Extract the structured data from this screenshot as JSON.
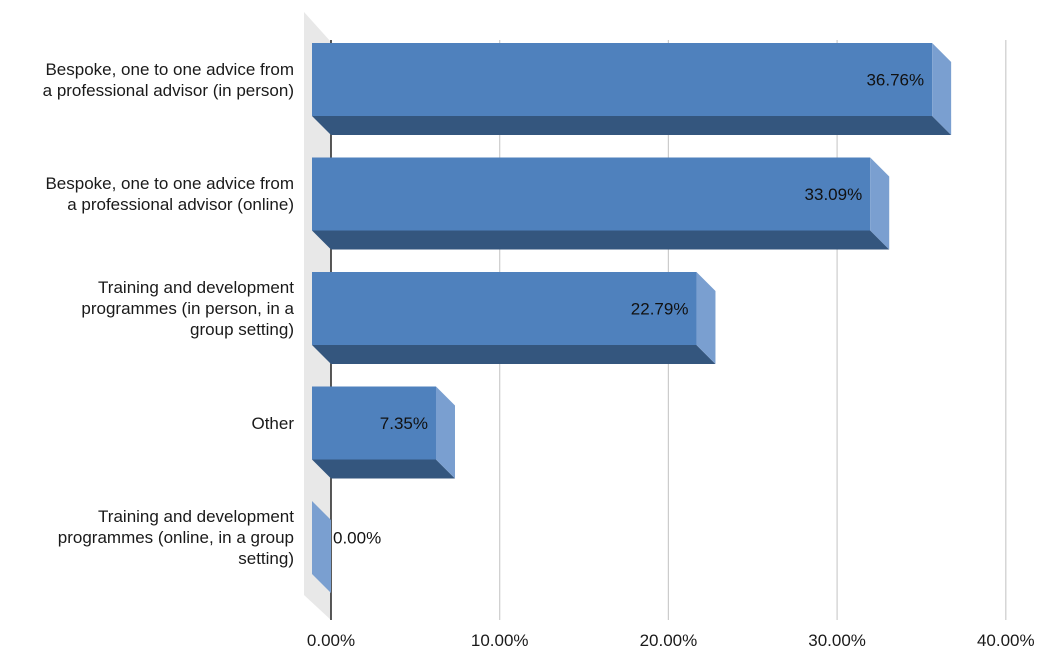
{
  "chart_data": {
    "type": "bar",
    "orientation": "horizontal",
    "style": "3d",
    "categories": [
      "Bespoke, one to one advice from\na professional advisor (in person)",
      "Bespoke, one to one advice from\na professional advisor (online)",
      "Training and development\nprogrammes (in person, in a\ngroup setting)",
      "Other",
      "Training and development\nprogrammes (online, in a group\nsetting)"
    ],
    "values": [
      36.76,
      33.09,
      22.79,
      7.35,
      0.0
    ],
    "data_labels": [
      "36.76%",
      "33.09%",
      "22.79%",
      "7.35%",
      "0.00%"
    ],
    "xlim": [
      0,
      40
    ],
    "xticks": [
      0,
      10,
      20,
      30,
      40
    ],
    "xtick_labels": [
      "0.00%",
      "10.00%",
      "20.00%",
      "30.00%",
      "40.00%"
    ],
    "grid": true,
    "legend": "none",
    "colors": {
      "bar_front": "#4f81bd",
      "bar_bottom": "#34567e",
      "bar_side": "#7a9fd0",
      "grid": "#cccccc",
      "wall": "#e8e8e8"
    }
  }
}
